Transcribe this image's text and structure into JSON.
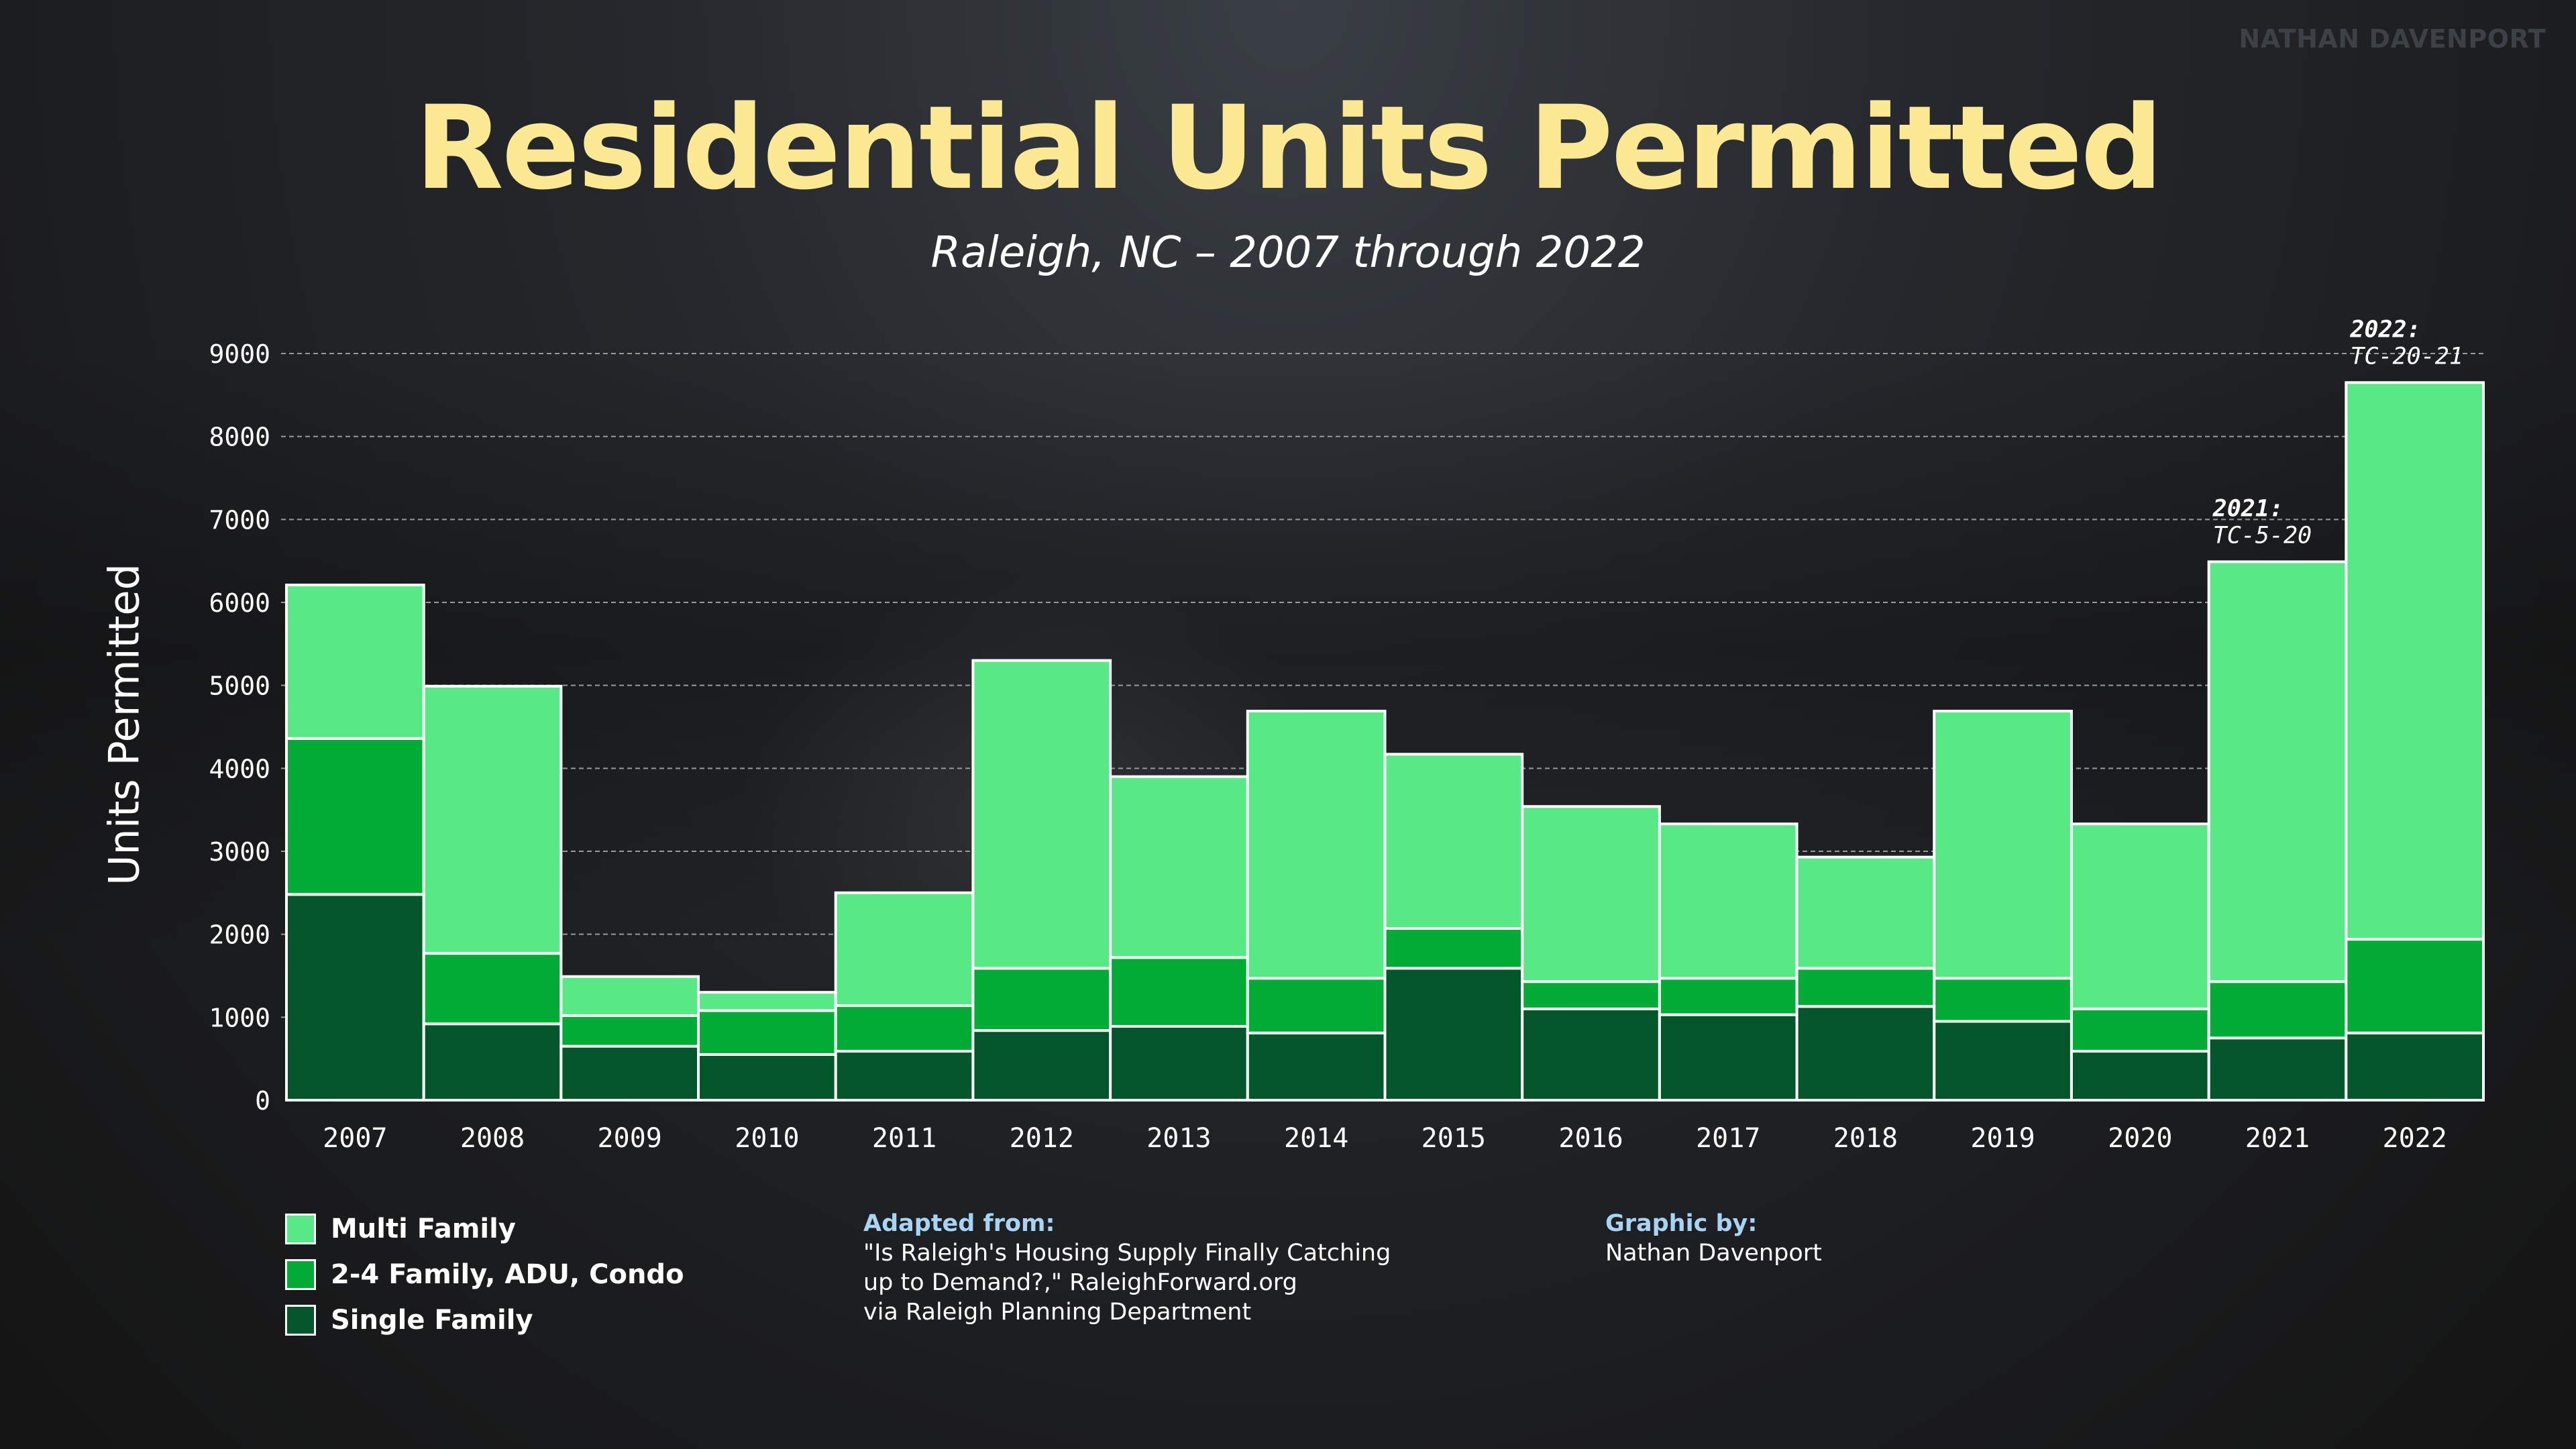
{
  "watermark": "NATHAN DAVENPORT",
  "title": "Residential Units Permitted",
  "subtitle": "Raleigh, NC – 2007 through 2022",
  "colors": {
    "title": "#fde894",
    "multi_family": "#56e985",
    "two_four_family": "#03ab37",
    "single_family": "#03552a",
    "bar_outline": "#ffffff",
    "credit_heading": "#a7d4f5"
  },
  "chart_data": {
    "type": "bar",
    "stacked": true,
    "categories": [
      "2007",
      "2008",
      "2009",
      "2010",
      "2011",
      "2012",
      "2013",
      "2014",
      "2015",
      "2016",
      "2017",
      "2018",
      "2019",
      "2020",
      "2021",
      "2022"
    ],
    "series": [
      {
        "name": "Single Family",
        "values": [
          2480,
          920,
          650,
          550,
          590,
          840,
          890,
          810,
          1590,
          1100,
          1030,
          1130,
          950,
          590,
          750,
          810
        ]
      },
      {
        "name": "2-4 Family, ADU, Condo",
        "values": [
          1880,
          850,
          370,
          530,
          550,
          750,
          830,
          660,
          480,
          330,
          440,
          460,
          520,
          510,
          680,
          1130
        ]
      },
      {
        "name": "Multi Family",
        "values": [
          1850,
          3220,
          470,
          220,
          1360,
          3710,
          2180,
          3220,
          2100,
          2110,
          1860,
          1340,
          3220,
          2230,
          5060,
          6710
        ]
      }
    ],
    "ylabel": "Units Permitted",
    "xlabel": "",
    "ylim": [
      0,
      9000
    ],
    "yticks": [
      "0",
      "1000",
      "2000",
      "3000",
      "4000",
      "5000",
      "6000",
      "7000",
      "8000",
      "9000"
    ],
    "grid": true,
    "annotations": [
      {
        "category": "2021",
        "line1": "2021:",
        "line2": "TC-5-20"
      },
      {
        "category": "2022",
        "line1": "2022:",
        "line2": "TC-20-21"
      }
    ]
  },
  "legend": {
    "items": [
      {
        "label": "Multi Family",
        "color": "#56e985"
      },
      {
        "label": "2-4 Family, ADU, Condo",
        "color": "#03ab37"
      },
      {
        "label": "Single Family",
        "color": "#03552a"
      }
    ]
  },
  "credits": {
    "adapted_heading": "Adapted from:",
    "adapted_lines": [
      "\"Is Raleigh's Housing Supply Finally Catching",
      "up to Demand?,\" RaleighForward.org",
      "via Raleigh Planning Department"
    ],
    "graphic_heading": "Graphic by:",
    "graphic_name": "Nathan Davenport"
  }
}
